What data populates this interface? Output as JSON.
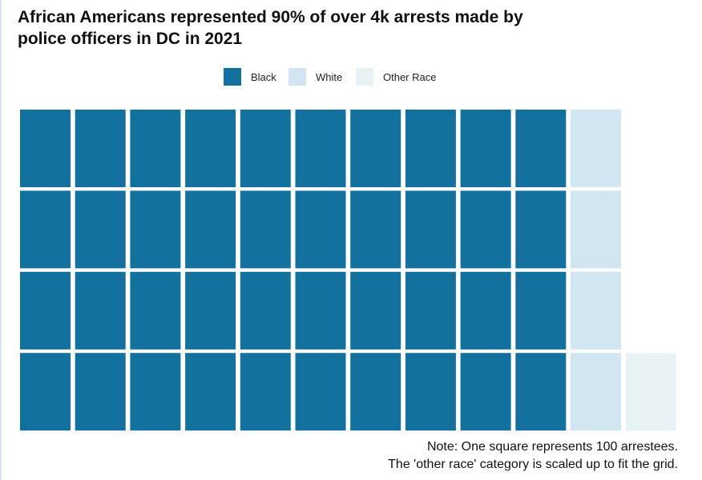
{
  "chart_data": {
    "type": "waffle",
    "title": "African Americans represented 90% of over 4k arrests made by\n police officers in DC in 2021",
    "legend": {
      "placement": "top-center",
      "entries": [
        {
          "name": "Black",
          "color": "#13719f"
        },
        {
          "name": "White",
          "color": "#d1e6f1"
        },
        {
          "name": "Other Race",
          "color": "#e8f1f3"
        }
      ]
    },
    "grid": {
      "rows": 4,
      "columns": 12
    },
    "series": [
      {
        "name": "Black",
        "squares": 40,
        "color": "#13719f"
      },
      {
        "name": "White",
        "squares": 4,
        "color": "#d1e6f1"
      },
      {
        "name": "Other Race",
        "squares": 1,
        "color": "#e8f1f3"
      }
    ],
    "notes": [
      "Note: One square represents 100 arrestees.",
      "The 'other race' category is scaled up to fit the grid."
    ]
  }
}
